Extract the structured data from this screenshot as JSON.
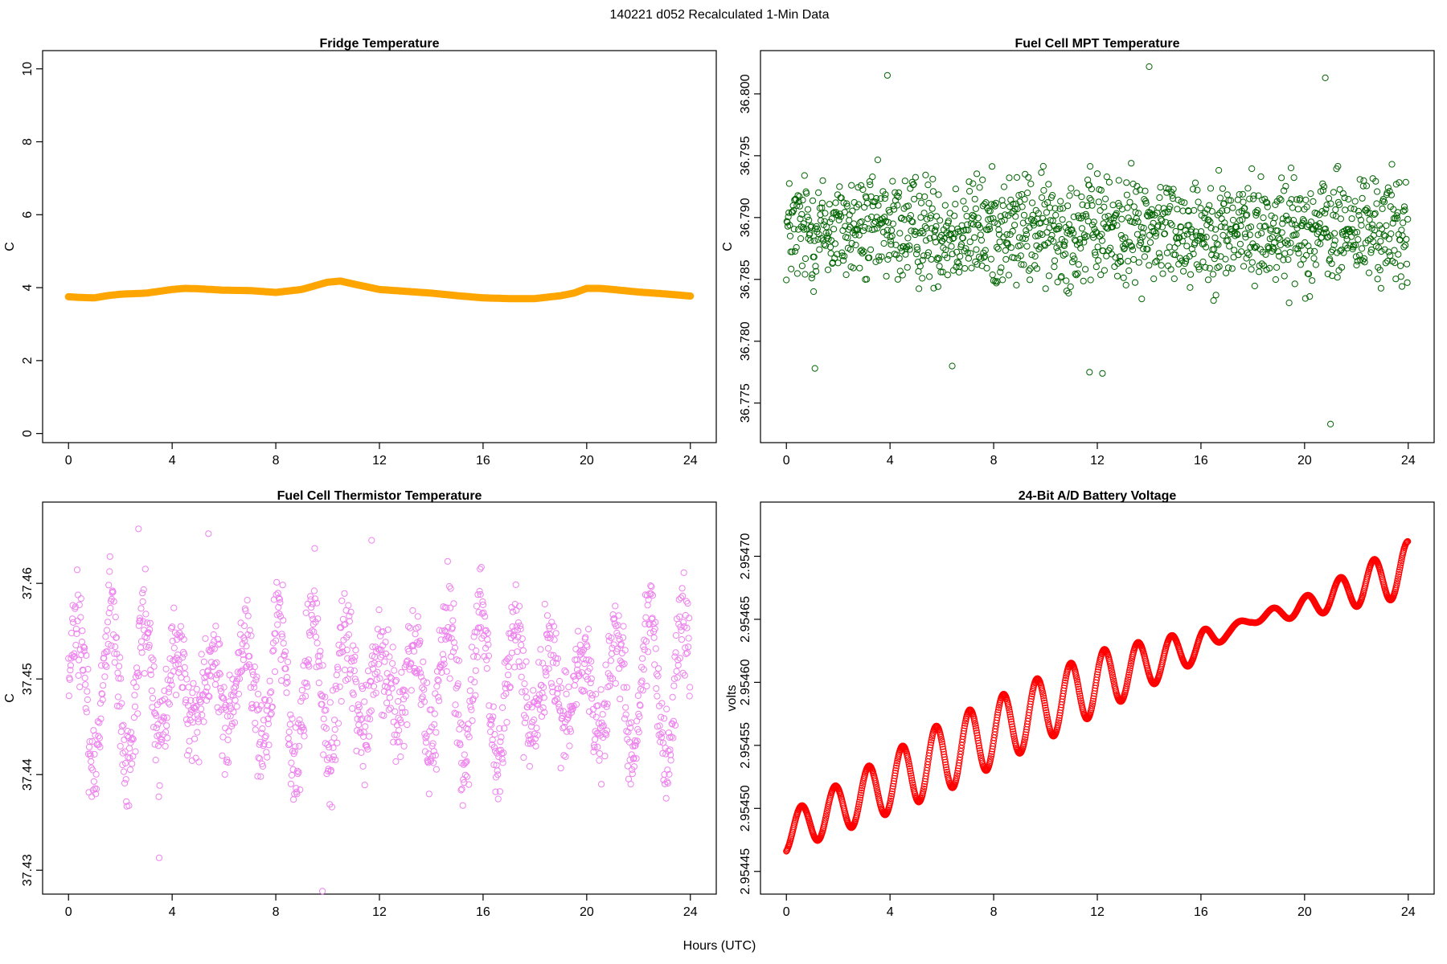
{
  "figure": {
    "title": "140221   d052   Recalculated 1-Min Data",
    "xlabel": "Hours (UTC)"
  },
  "chart_data": [
    {
      "type": "line",
      "title": "Fridge Temperature",
      "ylabel": "C",
      "xlim": [
        -1,
        25
      ],
      "ylim": [
        -0.25,
        10.5
      ],
      "xticks": [
        0,
        4,
        8,
        12,
        16,
        20,
        24
      ],
      "yticks": [
        0,
        2,
        4,
        6,
        8,
        10
      ],
      "ytick_labels": [
        "0",
        "2",
        "4",
        "6",
        "8",
        "10"
      ],
      "color": "#FFA500",
      "x": [
        0,
        0.5,
        1,
        1.5,
        2,
        3,
        4,
        4.5,
        5,
        6,
        7,
        8,
        9,
        10,
        10.5,
        11,
        12,
        13,
        14,
        15,
        16,
        17,
        18,
        19,
        19.5,
        20,
        20.5,
        21,
        22,
        23,
        24
      ],
      "y": [
        3.75,
        3.73,
        3.72,
        3.78,
        3.82,
        3.85,
        3.95,
        3.98,
        3.97,
        3.93,
        3.92,
        3.87,
        3.95,
        4.15,
        4.18,
        4.1,
        3.95,
        3.9,
        3.85,
        3.78,
        3.72,
        3.7,
        3.7,
        3.78,
        3.85,
        3.98,
        3.98,
        3.95,
        3.88,
        3.83,
        3.77
      ]
    },
    {
      "type": "scatter",
      "title": "Fuel Cell MPT Temperature",
      "ylabel": "C",
      "xlim": [
        -1,
        25
      ],
      "ylim": [
        36.7718,
        36.8035
      ],
      "xticks": [
        0,
        4,
        8,
        12,
        16,
        20,
        24
      ],
      "yticks": [
        36.775,
        36.78,
        36.785,
        36.79,
        36.795,
        36.8
      ],
      "ytick_labels": [
        "36.775",
        "36.780",
        "36.785",
        "36.790",
        "36.795",
        "36.800"
      ],
      "color": "#006400",
      "generator": "noise",
      "mean": 36.789,
      "spread": 0.004,
      "outliers": [
        [
          3.9,
          36.8015
        ],
        [
          14.0,
          36.8022
        ],
        [
          20.8,
          36.8013
        ],
        [
          21.0,
          36.7733
        ],
        [
          1.1,
          36.7778
        ],
        [
          11.7,
          36.7775
        ],
        [
          12.2,
          36.7774
        ],
        [
          6.4,
          36.778
        ]
      ]
    },
    {
      "type": "scatter",
      "title": "Fuel Cell Thermistor Temperature",
      "ylabel": "C",
      "xlim": [
        -1,
        25
      ],
      "ylim": [
        37.4275,
        37.4685
      ],
      "xticks": [
        0,
        4,
        8,
        12,
        16,
        20,
        24
      ],
      "yticks": [
        37.43,
        37.44,
        37.45,
        37.46
      ],
      "ytick_labels": [
        "37.43",
        "37.44",
        "37.45",
        "37.46"
      ],
      "color": "#EE82EE",
      "generator": "oscillation",
      "mean": 37.449,
      "amplitude": 0.0085,
      "period_hours": 1.3,
      "noise": 0.0025,
      "outliers": [
        [
          2.7,
          37.4657
        ],
        [
          5.4,
          37.4652
        ],
        [
          9.8,
          37.4278
        ],
        [
          3.5,
          37.4313
        ],
        [
          11.7,
          37.4645
        ]
      ]
    },
    {
      "type": "scatter",
      "title": "24-Bit A/D Battery Voltage",
      "ylabel": "volts",
      "xlim": [
        -1,
        25
      ],
      "ylim": [
        2.954432,
        2.954743
      ],
      "xticks": [
        0,
        4,
        8,
        12,
        16,
        20,
        24
      ],
      "yticks": [
        2.95445,
        2.9545,
        2.95455,
        2.9546,
        2.95465,
        2.9547
      ],
      "ytick_labels": [
        "2.95445",
        "2.95450",
        "2.95455",
        "2.95460",
        "2.95465",
        "2.95470"
      ],
      "color": "#FF0000",
      "generator": "trend-oscillation",
      "trend_x": [
        0,
        6,
        12,
        16,
        18,
        20,
        24
      ],
      "trend_y": [
        2.95448,
        2.95454,
        2.9546,
        2.95463,
        2.95465,
        2.95466,
        2.95469
      ],
      "amplitude_x": [
        0,
        6,
        12,
        16,
        17,
        18,
        20,
        24
      ],
      "amplitude_y": [
        1.5e-05,
        2.8e-05,
        2.5e-05,
        1.2e-05,
        4e-06,
        3e-06,
        8e-06,
        2.2e-05
      ],
      "period_hours": 1.3
    }
  ]
}
